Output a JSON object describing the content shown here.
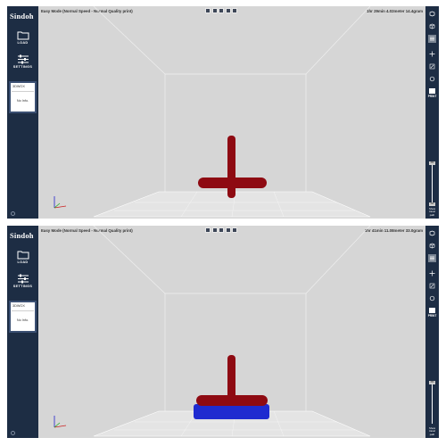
{
  "app": {
    "logo": "Sindoh"
  },
  "nav": {
    "load_label": "LOAD",
    "settings_label": "SETTINGS"
  },
  "model_card": {
    "name": "3DWOX",
    "info": "No Info."
  },
  "toolbar": {
    "print_label": "PRINT",
    "stop_label_lines": [
      "Show",
      "travel",
      "path"
    ]
  },
  "views": [
    "view-iso",
    "view-front",
    "view-top",
    "view-left",
    "view-right"
  ],
  "panels": [
    {
      "mode": "Easy Mode (Normal Speed - Normal Quality print)",
      "stats": "1hr 29min 4.02meter 14.4gram",
      "layer_top": "359",
      "layer_bottom": "359",
      "show_support": false
    },
    {
      "mode": "Easy Mode (Normal Speed - Normal Quality print)",
      "stats": "3hr 41min 11.08meter 33.0gram",
      "layer_top": "359",
      "layer_bottom": "",
      "show_support": true
    }
  ],
  "colors": {
    "sidebar": "#1d2d44",
    "viewport": "#d6d6d6",
    "model": "#8e0a12",
    "support": "#1f2bd0"
  }
}
